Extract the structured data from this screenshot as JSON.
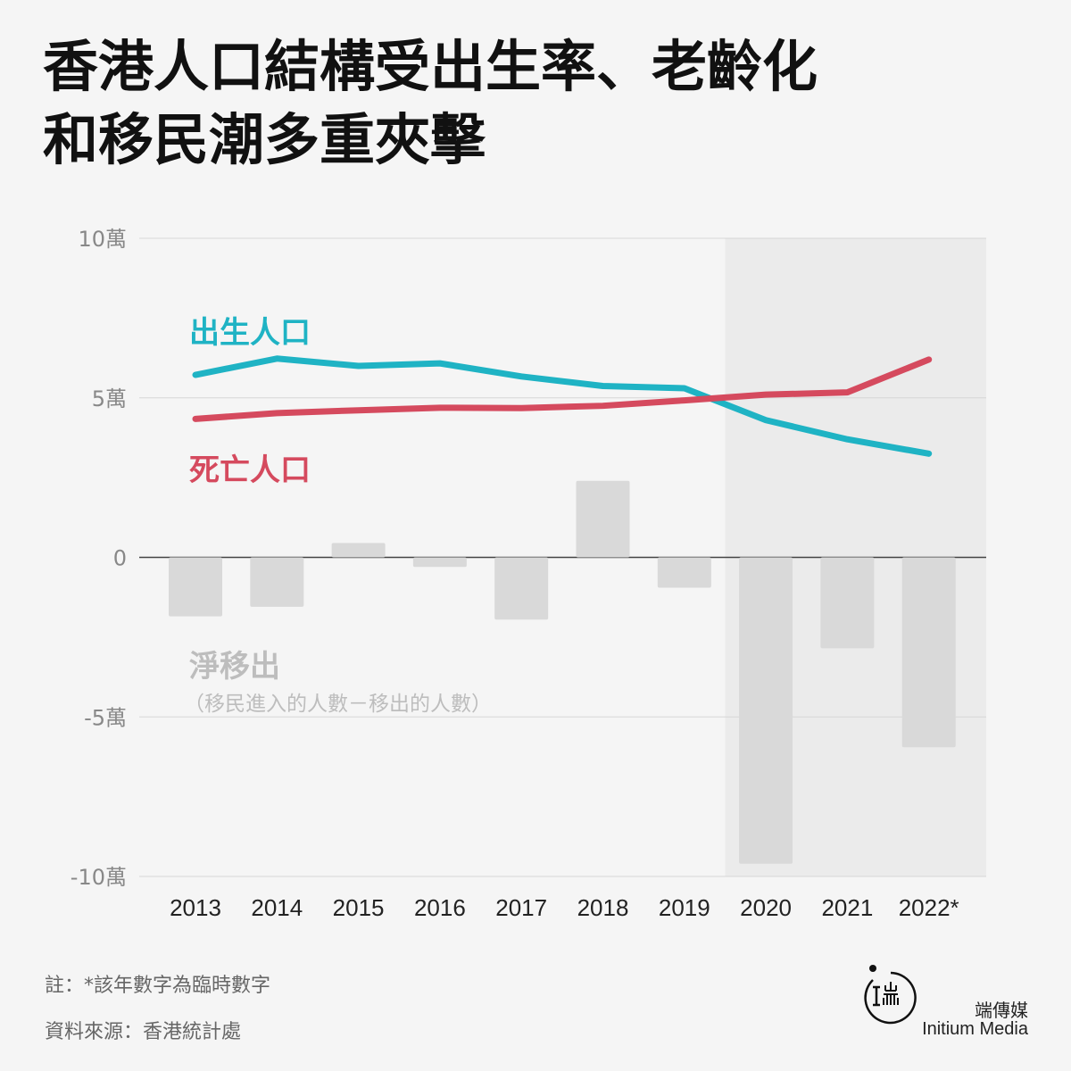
{
  "title": {
    "line1": "香港人口結構受出生率、老齡化",
    "line2": "和移民潮多重夾擊"
  },
  "chart_data": {
    "type": "line",
    "categories": [
      "2013",
      "2014",
      "2015",
      "2016",
      "2017",
      "2018",
      "2019",
      "2020",
      "2021",
      "2022*"
    ],
    "ylim": [
      -100000,
      100000
    ],
    "y_ticks": [
      {
        "value": 100000,
        "label": "10萬"
      },
      {
        "value": 50000,
        "label": "5萬"
      },
      {
        "value": 0,
        "label": "0"
      },
      {
        "value": -50000,
        "label": "-5萬"
      },
      {
        "value": -100000,
        "label": "-10萬"
      }
    ],
    "shaded_from_category": "2020",
    "grid": true,
    "series": [
      {
        "name": "出生人口",
        "type": "line",
        "color": "#1fb3c4",
        "values": [
          57200,
          62300,
          60000,
          60800,
          56700,
          53700,
          53000,
          43000,
          37000,
          32500
        ]
      },
      {
        "name": "死亡人口",
        "type": "line",
        "color": "#d54a5e",
        "values": [
          43400,
          45200,
          46100,
          46900,
          46800,
          47500,
          49200,
          51000,
          51700,
          62000
        ]
      },
      {
        "name": "淨移出",
        "type": "bar",
        "color": "#d9d9d9",
        "values": [
          -18500,
          -15500,
          4500,
          -3000,
          -19500,
          24000,
          -9500,
          -96000,
          -28500,
          -59500
        ]
      }
    ],
    "annotations": {
      "births_label": "出生人口",
      "deaths_label": "死亡人口",
      "net_label": "淨移出",
      "net_sublabel": "（移民進入的人數－移出的人數）"
    }
  },
  "footer": {
    "note": "註：*該年數字為臨時數字",
    "source": "資料來源：香港統計處",
    "brand_cn": "端傳媒",
    "brand_en": "Initium Media"
  }
}
